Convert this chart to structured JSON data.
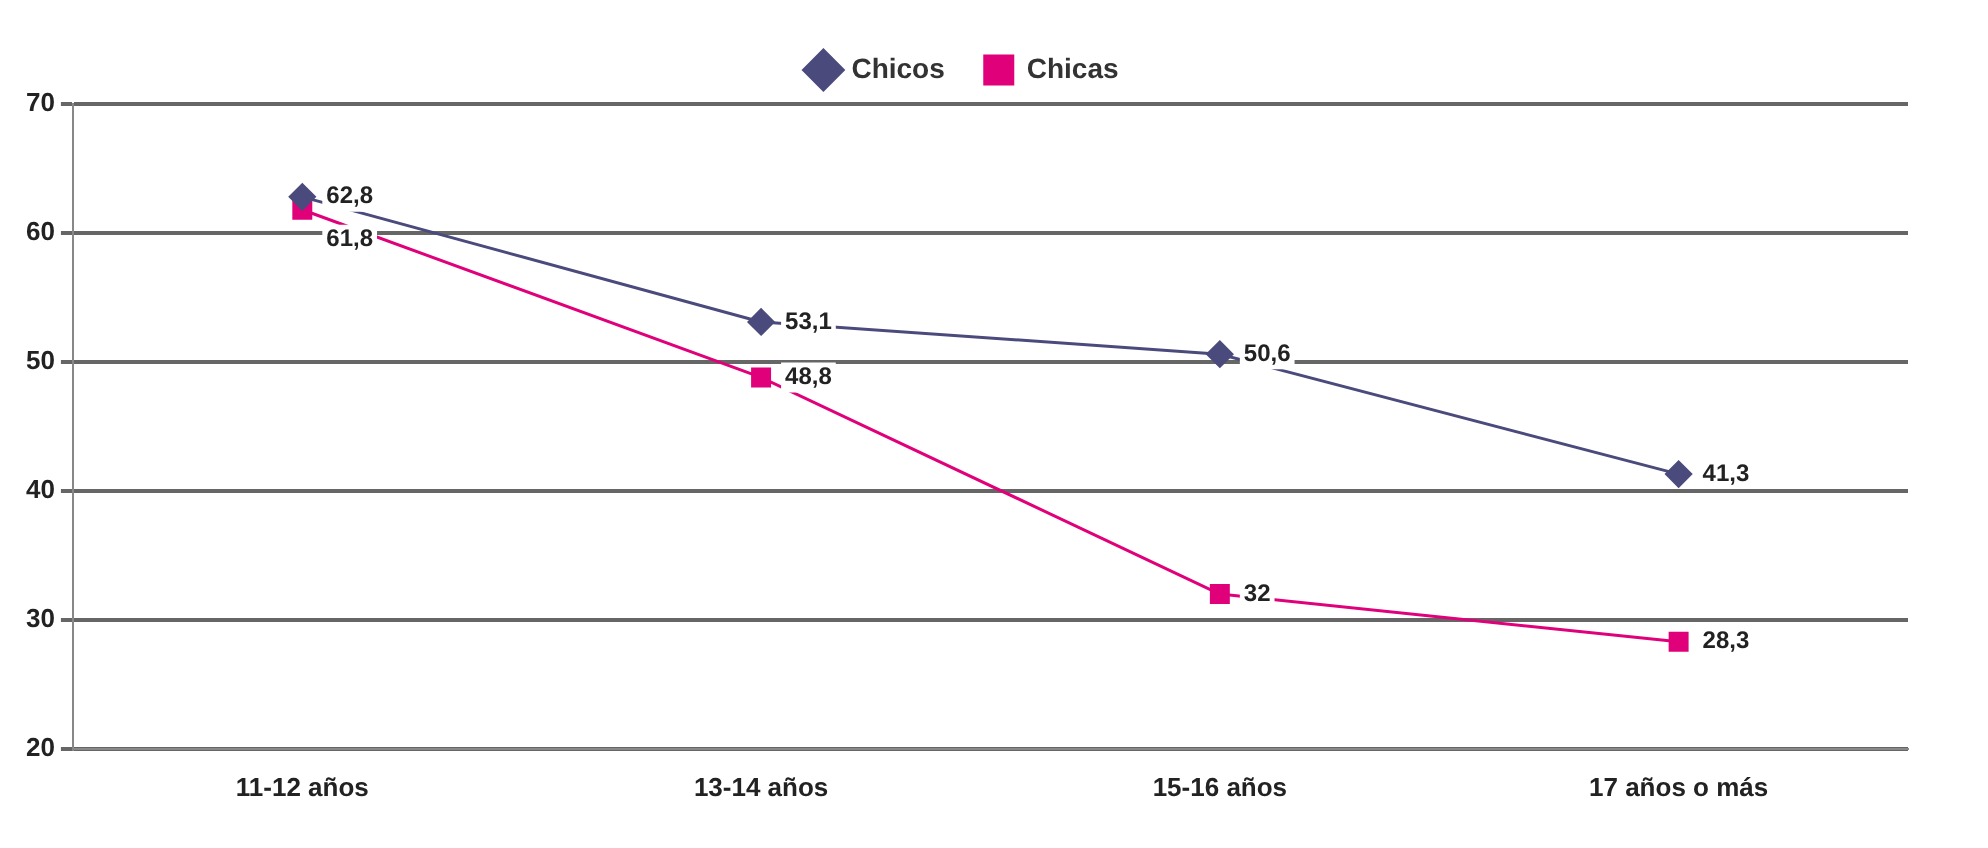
{
  "chart_data": {
    "type": "line",
    "categories": [
      "11-12 años",
      "13-14 años",
      "15-16 años",
      "17 años o más"
    ],
    "series": [
      {
        "name": "Chicos",
        "color": "#4b4a7d",
        "marker": "diamond",
        "values": [
          62.8,
          53.1,
          50.6,
          41.3
        ],
        "value_labels": [
          "62,8",
          "53,1",
          "50,6",
          "41,3"
        ]
      },
      {
        "name": "Chicas",
        "color": "#e0007a",
        "marker": "square",
        "values": [
          61.8,
          48.8,
          32,
          28.3
        ],
        "value_labels": [
          "61,8",
          "48,8",
          "32",
          "28,3"
        ]
      }
    ],
    "ylim": [
      20,
      70
    ],
    "yticks": [
      20,
      30,
      40,
      50,
      60,
      70
    ],
    "grid": "y",
    "legend": "top",
    "line_style": "solid"
  }
}
